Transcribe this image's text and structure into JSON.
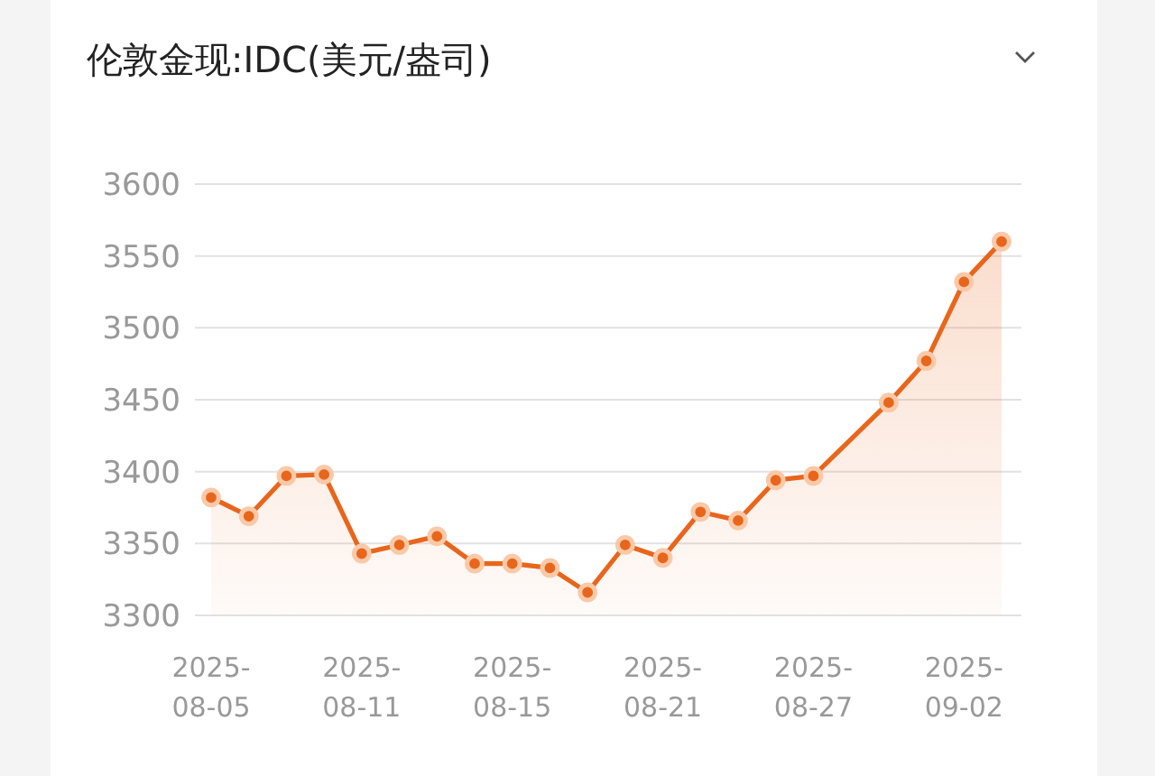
{
  "chart_data": {
    "type": "area",
    "title": "伦敦金现:IDC(美元/盎司)",
    "categories": [
      "2025-08-05",
      null,
      null,
      null,
      "2025-08-11",
      null,
      null,
      null,
      "2025-08-15",
      null,
      null,
      null,
      "2025-08-21",
      null,
      null,
      null,
      "2025-08-27",
      null,
      null,
      null,
      "2025-09-02",
      null
    ],
    "values": [
      3382,
      3369,
      3397,
      3398,
      3343,
      3349,
      3355,
      3336,
      3336,
      3333,
      3316,
      3349,
      3340,
      3372,
      3366,
      3394,
      3397,
      null,
      3448,
      3477,
      3532,
      3560
    ],
    "color": "#e8661c",
    "ylim": [
      3300,
      3600
    ],
    "yticks": [
      3300,
      3350,
      3400,
      3450,
      3500,
      3550,
      3600
    ],
    "grid": "y",
    "marker": "circle",
    "line_style": "solid"
  }
}
